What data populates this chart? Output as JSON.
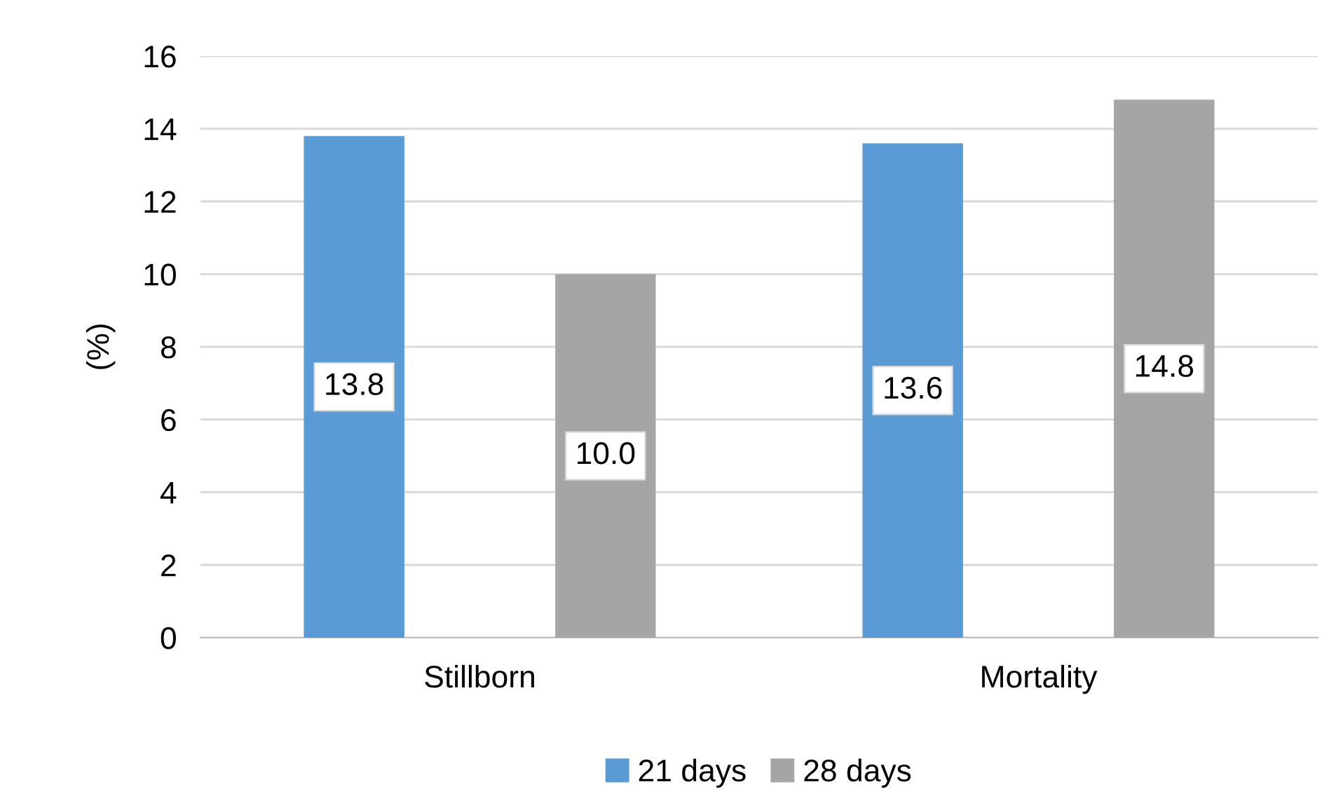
{
  "chart_data": {
    "type": "bar",
    "ylabel": "(%)",
    "categories": [
      "Stillborn",
      "Mortality"
    ],
    "series": [
      {
        "name": "21 days",
        "color": "#5b9bd5",
        "values": [
          13.8,
          13.6
        ],
        "value_labels": [
          "13.8",
          "13.6"
        ]
      },
      {
        "name": "28 days",
        "color": "#a5a5a5",
        "values": [
          10.0,
          14.8
        ],
        "value_labels": [
          "10.0",
          "14.8"
        ]
      }
    ],
    "ylim": [
      0,
      16
    ],
    "yticks": [
      0,
      2,
      4,
      6,
      8,
      10,
      12,
      14,
      16
    ],
    "grid": "y",
    "legend": "bottom"
  }
}
